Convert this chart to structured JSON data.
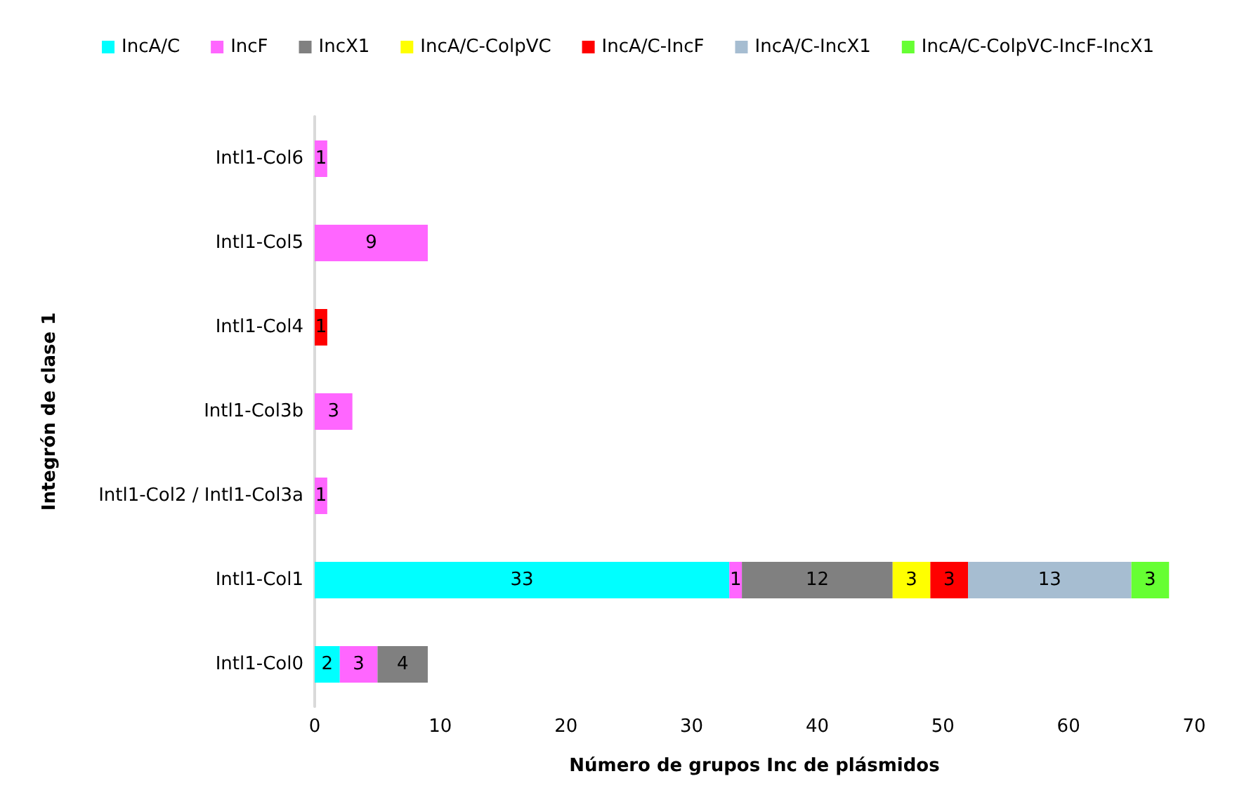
{
  "chart_data": {
    "type": "bar",
    "orientation": "horizontal",
    "stacked": true,
    "data_labels": true,
    "grid": false,
    "legend": "top",
    "xlabel": "Número de grupos Inc de plásmidos",
    "ylabel": "Integrón de clase 1",
    "categories": [
      "Intl1-Col6",
      "Intl1-Col5",
      "Intl1-Col4",
      "Intl1-Col3b",
      "Intl1-Col2 / Intl1-Col3a",
      "Intl1-Col1",
      "Intl1-Col0"
    ],
    "xlim": [
      0,
      70
    ],
    "xticks": [
      0,
      10,
      20,
      30,
      40,
      50,
      60,
      70
    ],
    "series": [
      {
        "name": "IncA/C",
        "color": "#00ffff",
        "values": [
          null,
          null,
          null,
          null,
          null,
          33,
          2
        ]
      },
      {
        "name": "IncF",
        "color": "#ff66ff",
        "values": [
          1,
          9,
          null,
          3,
          1,
          1,
          3
        ]
      },
      {
        "name": "IncX1",
        "color": "#808080",
        "values": [
          null,
          null,
          null,
          null,
          null,
          12,
          4
        ]
      },
      {
        "name": "IncA/C-ColpVC",
        "color": "#ffff00",
        "values": [
          null,
          null,
          null,
          null,
          null,
          3,
          null
        ]
      },
      {
        "name": "IncA/C-IncF",
        "color": "#ff0000",
        "values": [
          null,
          null,
          1,
          null,
          null,
          3,
          null
        ]
      },
      {
        "name": "IncA/C-IncX1",
        "color": "#a6bdd1",
        "values": [
          null,
          null,
          null,
          null,
          null,
          13,
          null
        ]
      },
      {
        "name": "IncA/C-ColpVC-IncF-IncX1",
        "color": "#66ff33",
        "values": [
          null,
          null,
          null,
          null,
          null,
          3,
          null
        ]
      }
    ]
  }
}
